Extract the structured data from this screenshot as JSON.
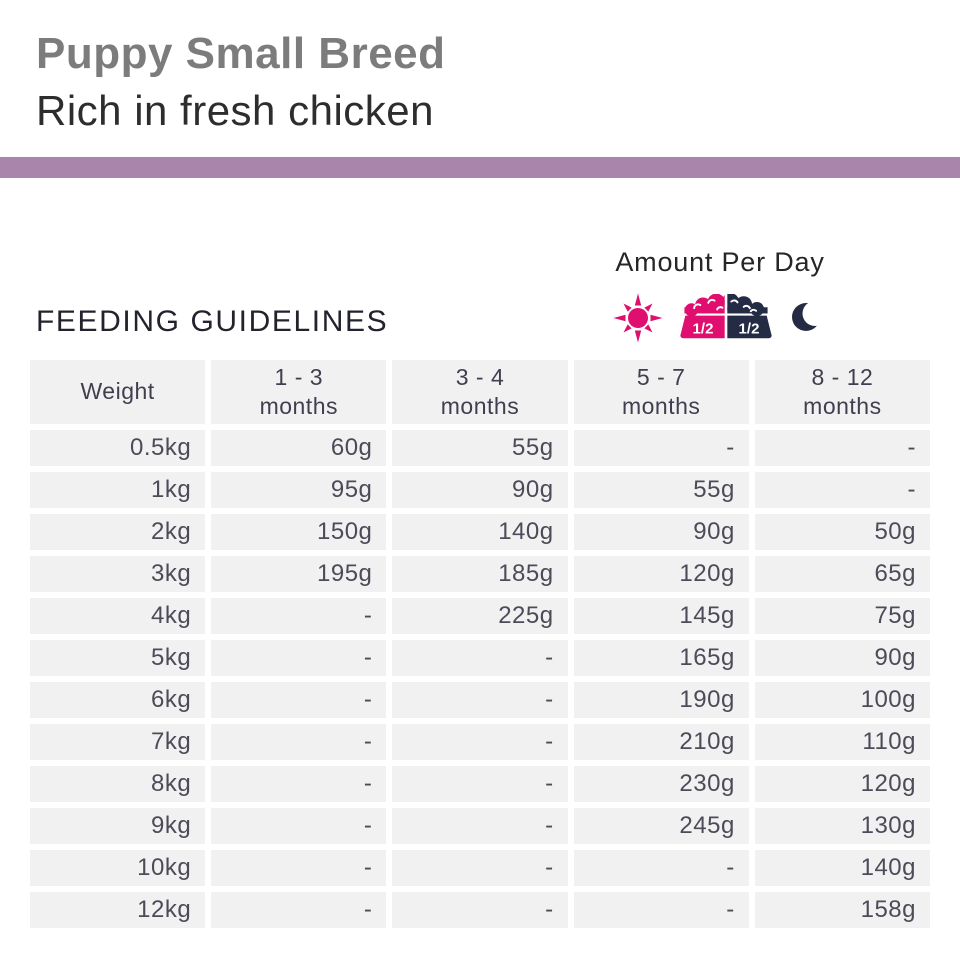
{
  "colors": {
    "accent_bar": "#a984ab",
    "brand_pink": "#e00e6e",
    "brand_navy": "#242b45",
    "title_gray": "#7c7c7c",
    "subtitle_color": "#2d2d2d",
    "heading_color": "#23232e",
    "table_cell_bg": "#f2f1f2",
    "table_text": "#4c4c58",
    "table_header_text": "#3f3f50"
  },
  "header": {
    "title": "Puppy Small Breed",
    "subtitle": "Rich in fresh chicken"
  },
  "amount_per_day": {
    "label": "Amount Per Day",
    "icons": [
      "sun-icon",
      "food-bowl-icon",
      "moon-icon"
    ],
    "portions": [
      "1/2",
      "1/2"
    ]
  },
  "feeding_guidelines": {
    "heading": "FEEDING GUIDELINES"
  },
  "table": {
    "columns": [
      {
        "lines": [
          "Weight"
        ]
      },
      {
        "lines": [
          "1 - 3",
          "months"
        ]
      },
      {
        "lines": [
          "3 - 4",
          "months"
        ]
      },
      {
        "lines": [
          "5 - 7",
          "months"
        ]
      },
      {
        "lines": [
          "8 - 12",
          "months"
        ]
      }
    ],
    "rows": [
      {
        "weight": "0.5kg",
        "values": [
          "60g",
          "55g",
          "-",
          "-"
        ]
      },
      {
        "weight": "1kg",
        "values": [
          "95g",
          "90g",
          "55g",
          "-"
        ]
      },
      {
        "weight": "2kg",
        "values": [
          "150g",
          "140g",
          "90g",
          "50g"
        ]
      },
      {
        "weight": "3kg",
        "values": [
          "195g",
          "185g",
          "120g",
          "65g"
        ]
      },
      {
        "weight": "4kg",
        "values": [
          "-",
          "225g",
          "145g",
          "75g"
        ]
      },
      {
        "weight": "5kg",
        "values": [
          "-",
          "-",
          "165g",
          "90g"
        ]
      },
      {
        "weight": "6kg",
        "values": [
          "-",
          "-",
          "190g",
          "100g"
        ]
      },
      {
        "weight": "7kg",
        "values": [
          "-",
          "-",
          "210g",
          "110g"
        ]
      },
      {
        "weight": "8kg",
        "values": [
          "-",
          "-",
          "230g",
          "120g"
        ]
      },
      {
        "weight": "9kg",
        "values": [
          "-",
          "-",
          "245g",
          "130g"
        ]
      },
      {
        "weight": "10kg",
        "values": [
          "-",
          "-",
          "-",
          "140g"
        ]
      },
      {
        "weight": "12kg",
        "values": [
          "-",
          "-",
          "-",
          "158g"
        ]
      }
    ]
  }
}
